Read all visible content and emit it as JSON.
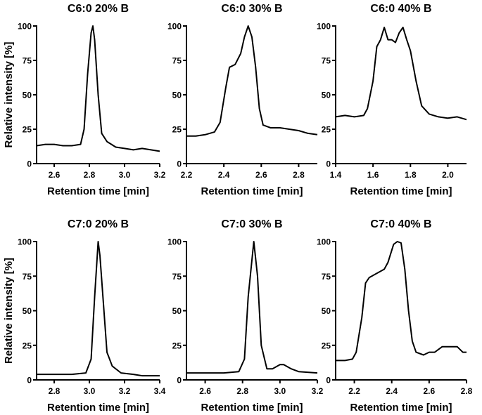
{
  "chart_data": [
    {
      "type": "line",
      "title": "C6:0 20% B",
      "xlabel": "Retention time [min]",
      "ylabel": "Relative intensity [%]",
      "xlim": [
        2.5,
        3.2
      ],
      "ylim": [
        0,
        100
      ],
      "xticks": [
        "2.6",
        "2.8",
        "3.0",
        "3.2"
      ],
      "yticks": [
        "0",
        "25",
        "50",
        "75",
        "100"
      ],
      "grid": false,
      "x": [
        2.5,
        2.55,
        2.6,
        2.65,
        2.7,
        2.75,
        2.77,
        2.79,
        2.81,
        2.82,
        2.83,
        2.85,
        2.87,
        2.9,
        2.95,
        3.0,
        3.05,
        3.1,
        3.15,
        3.2
      ],
      "y": [
        13,
        14,
        14,
        13,
        13,
        14,
        25,
        65,
        95,
        100,
        90,
        50,
        22,
        16,
        12,
        11,
        10,
        11,
        10,
        9
      ]
    },
    {
      "type": "line",
      "title": "C6:0 30% B",
      "xlabel": "Retention time [min]",
      "ylabel": "",
      "xlim": [
        2.2,
        2.9
      ],
      "ylim": [
        0,
        100
      ],
      "xticks": [
        "2.2",
        "2.4",
        "2.6",
        "2.8"
      ],
      "yticks": [
        "0",
        "25",
        "50",
        "75",
        "100"
      ],
      "grid": false,
      "x": [
        2.2,
        2.25,
        2.3,
        2.35,
        2.38,
        2.41,
        2.43,
        2.46,
        2.49,
        2.51,
        2.53,
        2.55,
        2.57,
        2.59,
        2.61,
        2.65,
        2.7,
        2.75,
        2.8,
        2.85,
        2.9
      ],
      "y": [
        20,
        20,
        21,
        23,
        30,
        55,
        70,
        72,
        80,
        92,
        100,
        92,
        70,
        40,
        28,
        26,
        26,
        25,
        24,
        22,
        21
      ]
    },
    {
      "type": "line",
      "title": "C6:0 40% B",
      "xlabel": "Retention time [min]",
      "ylabel": "",
      "xlim": [
        1.4,
        2.1
      ],
      "ylim": [
        0,
        100
      ],
      "xticks": [
        "1.4",
        "1.6",
        "1.8",
        "2.0"
      ],
      "yticks": [
        "0",
        "25",
        "50",
        "75",
        "100"
      ],
      "grid": false,
      "x": [
        1.4,
        1.45,
        1.5,
        1.55,
        1.57,
        1.6,
        1.62,
        1.64,
        1.66,
        1.68,
        1.7,
        1.72,
        1.74,
        1.76,
        1.78,
        1.8,
        1.83,
        1.86,
        1.9,
        1.95,
        2.0,
        2.05,
        2.1
      ],
      "y": [
        34,
        35,
        34,
        35,
        40,
        60,
        85,
        90,
        99,
        90,
        90,
        88,
        95,
        99,
        90,
        82,
        60,
        42,
        36,
        34,
        33,
        34,
        32
      ]
    },
    {
      "type": "line",
      "title": "C7:0 20% B",
      "xlabel": "Retention time [min]",
      "ylabel": "Relative intensity [%]",
      "xlim": [
        2.7,
        3.4
      ],
      "ylim": [
        0,
        100
      ],
      "xticks": [
        "2.8",
        "3.0",
        "3.2",
        "3.4"
      ],
      "yticks": [
        "0",
        "25",
        "50",
        "75",
        "100"
      ],
      "grid": false,
      "x": [
        2.7,
        2.8,
        2.9,
        2.98,
        3.01,
        3.03,
        3.05,
        3.06,
        3.08,
        3.1,
        3.13,
        3.18,
        3.25,
        3.3,
        3.4
      ],
      "y": [
        4,
        4,
        4,
        5,
        15,
        60,
        100,
        90,
        55,
        20,
        10,
        5,
        4,
        3,
        3
      ]
    },
    {
      "type": "line",
      "title": "C7:0 30% B",
      "xlabel": "Retention time [min]",
      "ylabel": "",
      "xlim": [
        2.5,
        3.2
      ],
      "ylim": [
        0,
        100
      ],
      "xticks": [
        "2.6",
        "2.8",
        "3.0",
        "3.2"
      ],
      "yticks": [
        "0",
        "25",
        "50",
        "75",
        "100"
      ],
      "grid": false,
      "x": [
        2.5,
        2.6,
        2.7,
        2.78,
        2.81,
        2.83,
        2.86,
        2.88,
        2.9,
        2.93,
        2.96,
        3.0,
        3.02,
        3.06,
        3.1,
        3.2
      ],
      "y": [
        5,
        5,
        5,
        6,
        15,
        60,
        100,
        75,
        25,
        8,
        8,
        11,
        11,
        8,
        6,
        5
      ]
    },
    {
      "type": "line",
      "title": "C7:0 40% B",
      "xlabel": "Retention time [min]",
      "ylabel": "",
      "xlim": [
        2.1,
        2.8
      ],
      "ylim": [
        0,
        100
      ],
      "xticks": [
        "2.2",
        "2.4",
        "2.6",
        "2.8"
      ],
      "yticks": [
        "0",
        "25",
        "50",
        "75",
        "100"
      ],
      "grid": false,
      "x": [
        2.1,
        2.15,
        2.19,
        2.21,
        2.24,
        2.26,
        2.28,
        2.32,
        2.36,
        2.38,
        2.41,
        2.43,
        2.45,
        2.47,
        2.49,
        2.51,
        2.53,
        2.57,
        2.6,
        2.63,
        2.67,
        2.7,
        2.75,
        2.78,
        2.8
      ],
      "y": [
        14,
        14,
        15,
        20,
        45,
        70,
        74,
        77,
        80,
        85,
        98,
        100,
        99,
        80,
        50,
        28,
        20,
        18,
        20,
        20,
        24,
        24,
        24,
        20,
        20
      ]
    }
  ]
}
